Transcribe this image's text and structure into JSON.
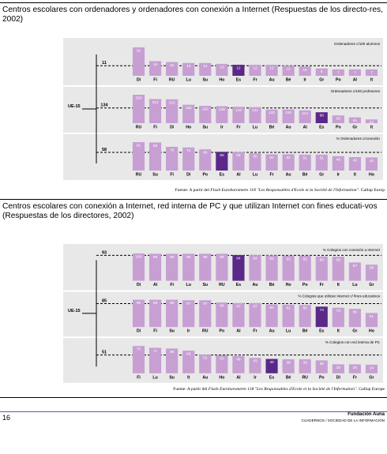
{
  "section1": {
    "title": "Centros escolares con ordenadores y ordenadores con conexión a Internet (Respuestas de los directo-res, 2002)",
    "source_prefix": "Fuente: A partir del ",
    "source_italic": "Flash Eurobarometre 118 \"Les Responsables d'Ecole et la Société de l'Information\"",
    "source_suffix": ". Gallup Europ"
  },
  "section2": {
    "title": "Centros escolares con conexión a Internet, red interna de PC y que utilizan Internet con fines educati-vos (Respuestas de los directores, 2002)",
    "source_prefix": "Fuente: A partir del ",
    "source_italic": "Flash Eurobarometre 118 \"Les Responsables d'Ecole et la Société de l'Information\"",
    "source_suffix": ". Gallup Europe"
  },
  "footer": {
    "page_number": "16",
    "foundation": "Fundación Auna",
    "series": "CUADERNOS / SOCIEDAD DE LA INFORMACIÓN"
  },
  "colors": {
    "bar": "#c79fd3",
    "highlight": "#5b2889",
    "panel_bg": "#e8e8e8",
    "value_on_bar": "#ffffff",
    "value_above": "#b08bc0"
  },
  "chart_data": [
    {
      "type": "bar",
      "group_label": "UE-15",
      "panels": [
        {
          "title": "Ordenadores c/100 alumnos",
          "eu_value": "11",
          "highlight": "Es",
          "categories": [
            "Di",
            "Fi",
            "RU",
            "Lu",
            "Su",
            "Ho",
            "Es",
            "Fr",
            "Au",
            "Bé",
            "Ir",
            "Gr",
            "Po",
            "Al",
            "It"
          ],
          "values": [
            31,
            16,
            15,
            14,
            14,
            13,
            12,
            12,
            12,
            11,
            10,
            8,
            7,
            7,
            7
          ]
        },
        {
          "title": "Ordenadores c/100 profesores",
          "eu_value": "134",
          "highlight": "Es",
          "categories": [
            "RU",
            "Fi",
            "Di",
            "Ho",
            "Su",
            "Ir",
            "Fr",
            "Lu",
            "Bé",
            "Au",
            "Al",
            "Es",
            "Po",
            "Gr",
            "It"
          ],
          "values": [
            250,
            212,
            210,
            162,
            152,
            149,
            144,
            141,
            120,
            120,
            113,
            96,
            68,
            51,
            33
          ]
        },
        {
          "title": "% Ordenadores c/conexión",
          "eu_value": "58",
          "highlight": "Es",
          "categories": [
            "RU",
            "Su",
            "Fi",
            "Di",
            "Po",
            "Es",
            "Al",
            "Lu",
            "Fr",
            "Au",
            "Bé",
            "Gr",
            "Ir",
            "It",
            "Ho"
          ],
          "values": [
            91,
            90,
            76,
            74,
            68,
            60,
            59,
            55,
            52,
            52,
            51,
            51,
            46,
            43,
            42
          ]
        }
      ]
    },
    {
      "type": "bar",
      "group_label": "UE-15",
      "panels": [
        {
          "title": "% Colegios con conexión a Internet",
          "eu_value": "93",
          "highlight": "Es",
          "categories": [
            "Di",
            "Al",
            "Fi",
            "Lu",
            "Su",
            "RU",
            "Es",
            "Au",
            "Bé",
            "Ho",
            "Po",
            "Fr",
            "It",
            "Lu",
            "Gr"
          ],
          "values": [
            100,
            99,
            99,
            99,
            99,
            99,
            94,
            94,
            93,
            92,
            92,
            89,
            88,
            67,
            59
          ]
        },
        {
          "title": "% Colegios que utilizan Internet  c/ fines educativos",
          "eu_value": "85",
          "highlight": "Es",
          "categories": [
            "Di",
            "Fi",
            "Su",
            "Ir",
            "RU",
            "Po",
            "Al",
            "Fr",
            "Au",
            "Lu",
            "Bé",
            "Es",
            "It",
            "Gr",
            "Ho"
          ],
          "values": [
            99,
            99,
            99,
            97,
            97,
            89,
            87,
            87,
            82,
            81,
            80,
            74,
            70,
            66,
            51
          ]
        },
        {
          "title": "% Colegios con red interna de PC",
          "eu_value": "51",
          "highlight": "Es",
          "categories": [
            "Fi",
            "Lu",
            "Su",
            "It",
            "Au",
            "Ho",
            "Al",
            "Ir",
            "Es",
            "Bé",
            "RU",
            "Po",
            "Di",
            "Fr",
            "Gr"
          ],
          "values": [
            76,
            71,
            69,
            63,
            52,
            50,
            48,
            43,
            40,
            39,
            39,
            36,
            25,
            25,
            24
          ]
        }
      ]
    }
  ]
}
